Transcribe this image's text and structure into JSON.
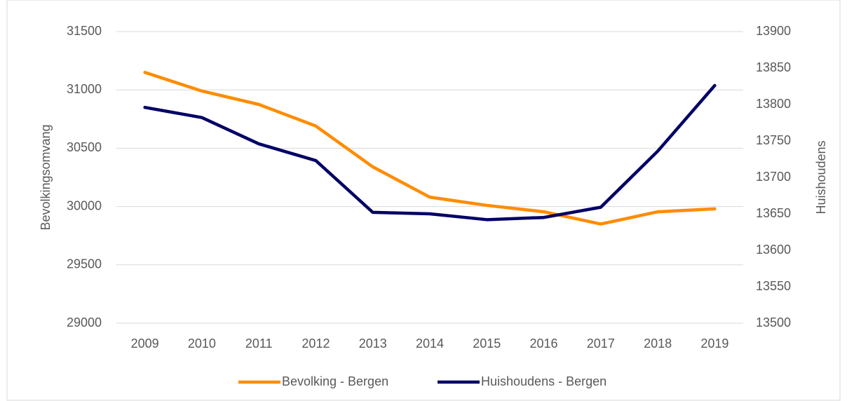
{
  "chart_data": {
    "type": "line",
    "categories": [
      "2009",
      "2010",
      "2011",
      "2012",
      "2013",
      "2014",
      "2015",
      "2016",
      "2017",
      "2018",
      "2019"
    ],
    "series": [
      {
        "name": "Bevolking - Bergen",
        "color": "#ff8c00",
        "values": [
          31150,
          30990,
          30875,
          30690,
          30340,
          30080,
          30010,
          29955,
          29850,
          29955,
          29980
        ]
      },
      {
        "name": "Huishoudens - Bergen",
        "color": "#000066",
        "axis": "y2",
        "values": [
          13796,
          13782,
          13746,
          13723,
          13652,
          13650,
          13642,
          13645,
          13659,
          13736,
          13826
        ]
      }
    ],
    "ylabel": "Bevolkingsomvang",
    "y2label": "Huishoudens",
    "ylim": [
      29000,
      31500
    ],
    "yticks": [
      29000,
      29500,
      30000,
      30500,
      31000,
      31500
    ],
    "y2lim": [
      13500,
      13900
    ],
    "y2ticks": [
      13500,
      13550,
      13600,
      13650,
      13700,
      13750,
      13800,
      13850,
      13900
    ],
    "grid": true,
    "legend": "bottom"
  }
}
